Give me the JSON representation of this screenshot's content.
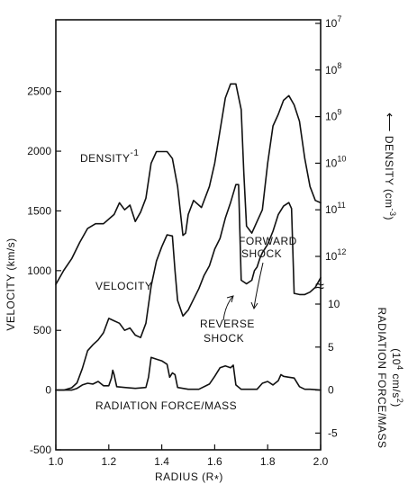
{
  "chart_data": {
    "type": "line",
    "xlabel": "RADIUS (R",
    "xlabel_sub": "*",
    "xlabel_close": ")",
    "xlim": [
      1.0,
      2.0
    ],
    "xticks": [
      1.0,
      1.2,
      1.4,
      1.6,
      1.8,
      2.0
    ],
    "xtick_labels": [
      "1.0",
      "1.2",
      "1.4",
      "1.6",
      "1.8",
      "2.0"
    ],
    "left_axis": {
      "label": "VELOCITY (km/s)",
      "ylim": [
        -500,
        3100
      ],
      "ticks": [
        -500,
        0,
        500,
        1000,
        1500,
        2000,
        2500
      ],
      "tick_labels": [
        "-500",
        "0",
        "500",
        "1000",
        "1500",
        "2000",
        "2500"
      ]
    },
    "right_axis_density": {
      "label": "DENSITY (cm",
      "label_sup": "-3",
      "label_close": ")",
      "arrow": "⟵",
      "exponent_ticks": [
        7,
        8,
        9,
        10,
        11,
        12
      ],
      "tick_base": "10",
      "scale": "log"
    },
    "right_axis_force": {
      "label_line1": "RADIATION FORCE/MASS",
      "label_line2": "(10",
      "label_line2_sup": "4",
      "label_line2_rest": " cm/s",
      "label_line2_sup2": "2",
      "label_line2_close": ")",
      "ticks": [
        -5,
        0,
        5,
        10
      ],
      "tick_labels": [
        "-5",
        "0",
        "5",
        "10"
      ]
    },
    "series": [
      {
        "name": "DENSITY",
        "name_sup": "-1",
        "axis": "density",
        "x": [
          1.0,
          1.03,
          1.06,
          1.09,
          1.12,
          1.15,
          1.18,
          1.21,
          1.22,
          1.24,
          1.26,
          1.28,
          1.3,
          1.32,
          1.34,
          1.36,
          1.38,
          1.4,
          1.42,
          1.44,
          1.46,
          1.48,
          1.49,
          1.5,
          1.52,
          1.55,
          1.58,
          1.6,
          1.62,
          1.64,
          1.66,
          1.68,
          1.7,
          1.71,
          1.72,
          1.74,
          1.76,
          1.78,
          1.8,
          1.82,
          1.84,
          1.86,
          1.88,
          1.9,
          1.92,
          1.94,
          1.96,
          1.98,
          2.0
        ],
        "y": [
          12.6,
          12.3,
          12.05,
          11.7,
          11.4,
          11.3,
          11.3,
          11.15,
          11.1,
          10.85,
          11.0,
          10.9,
          11.25,
          11.05,
          10.75,
          10.0,
          9.75,
          9.75,
          9.75,
          9.9,
          10.5,
          11.55,
          11.5,
          11.1,
          10.8,
          10.95,
          10.5,
          10.0,
          9.3,
          8.6,
          8.3,
          8.3,
          8.85,
          10.2,
          11.35,
          11.5,
          11.25,
          11.0,
          10.0,
          9.2,
          8.95,
          8.65,
          8.55,
          8.75,
          9.1,
          9.9,
          10.5,
          10.8,
          10.85
        ]
      },
      {
        "name": "VELOCITY",
        "axis": "velocity",
        "x": [
          1.0,
          1.03,
          1.06,
          1.08,
          1.1,
          1.12,
          1.14,
          1.16,
          1.18,
          1.2,
          1.22,
          1.24,
          1.26,
          1.28,
          1.3,
          1.32,
          1.34,
          1.36,
          1.38,
          1.4,
          1.42,
          1.44,
          1.45,
          1.46,
          1.48,
          1.5,
          1.52,
          1.54,
          1.56,
          1.58,
          1.6,
          1.62,
          1.64,
          1.66,
          1.68,
          1.69,
          1.7,
          1.72,
          1.74,
          1.75,
          1.76,
          1.77,
          1.78,
          1.8,
          1.82,
          1.84,
          1.86,
          1.88,
          1.89,
          1.9,
          1.92,
          1.94,
          1.96,
          1.98,
          2.0
        ],
        "y": [
          0,
          0,
          20,
          60,
          180,
          330,
          380,
          420,
          480,
          600,
          580,
          560,
          500,
          520,
          460,
          440,
          560,
          870,
          1080,
          1200,
          1300,
          1290,
          1000,
          750,
          620,
          670,
          760,
          850,
          960,
          1040,
          1180,
          1270,
          1440,
          1570,
          1720,
          1720,
          920,
          890,
          920,
          1000,
          1030,
          1100,
          1150,
          1220,
          1330,
          1470,
          1540,
          1570,
          1520,
          810,
          800,
          800,
          820,
          860,
          940
        ]
      },
      {
        "name": "RADIATION FORCE/MASS",
        "axis": "force",
        "x": [
          1.0,
          1.06,
          1.08,
          1.1,
          1.12,
          1.14,
          1.16,
          1.18,
          1.2,
          1.21,
          1.215,
          1.22,
          1.23,
          1.26,
          1.3,
          1.34,
          1.35,
          1.36,
          1.38,
          1.4,
          1.42,
          1.43,
          1.44,
          1.45,
          1.46,
          1.5,
          1.54,
          1.58,
          1.6,
          1.62,
          1.64,
          1.66,
          1.67,
          1.68,
          1.7,
          1.76,
          1.78,
          1.8,
          1.82,
          1.84,
          1.85,
          1.86,
          1.88,
          1.9,
          1.92,
          1.94,
          1.96,
          2.0
        ],
        "y": [
          0,
          0,
          0.2,
          0.6,
          0.8,
          0.7,
          1.0,
          0.5,
          0.5,
          1.4,
          2.3,
          1.8,
          0.4,
          0.3,
          0.2,
          0.3,
          1.5,
          3.8,
          3.6,
          3.4,
          3.0,
          1.5,
          2.0,
          1.8,
          0.3,
          0.1,
          0.1,
          0.7,
          1.6,
          2.6,
          2.8,
          2.6,
          2.9,
          0.6,
          0.1,
          0.1,
          0.8,
          1.0,
          0.6,
          1.1,
          1.8,
          1.6,
          1.5,
          1.4,
          0.4,
          0.1,
          0.1,
          0.0
        ]
      }
    ],
    "annotations": {
      "density_label": "DENSITY",
      "density_sup": "-1",
      "velocity_label": "VELOCITY",
      "forward_line1": "FORWARD",
      "forward_line2": "SHOCK",
      "reverse_line1": "REVERSE",
      "reverse_line2": "SHOCK",
      "force_label": "RADIATION FORCE/MASS"
    },
    "axis_break": "≈"
  }
}
